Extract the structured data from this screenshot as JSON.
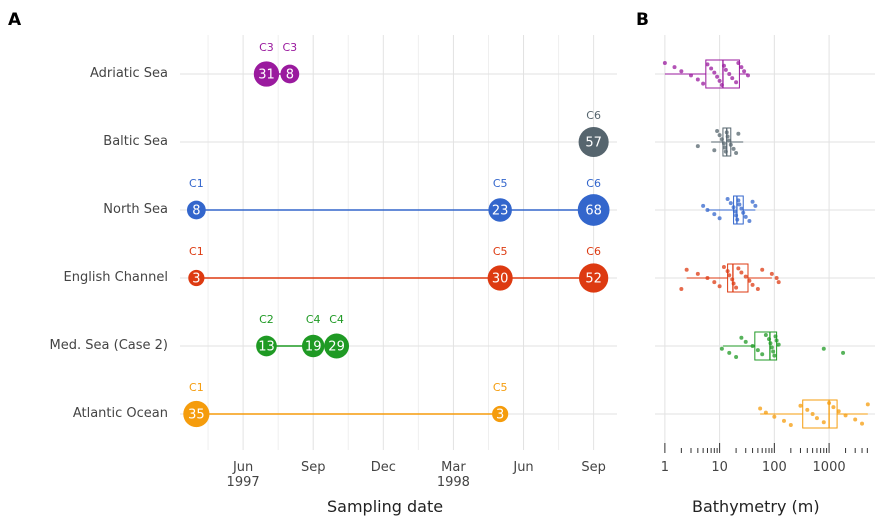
{
  "chart_data": [
    {
      "type": "bubble",
      "panel": "A",
      "x_label": "Sampling date",
      "xlim": [
        "1997-03",
        "1998-10"
      ],
      "xticks": [
        {
          "value": "1997-06",
          "label": "Jun\n1997"
        },
        {
          "value": "1997-09",
          "label": "Sep"
        },
        {
          "value": "1997-12",
          "label": "Dec"
        },
        {
          "value": "1998-03",
          "label": "Mar\n1998"
        },
        {
          "value": "1998-06",
          "label": "Jun"
        },
        {
          "value": "1998-09",
          "label": "Sep"
        }
      ],
      "grid": true,
      "series": [
        {
          "name": "Adriatic Sea",
          "color": "#9a1a9e",
          "x": [
            "1997-07",
            "1997-08"
          ],
          "values": [
            31,
            8
          ],
          "labels": [
            "C3",
            "C3"
          ]
        },
        {
          "name": "Baltic Sea",
          "color": "#56656e",
          "x": [
            "1998-09"
          ],
          "values": [
            57
          ],
          "labels": [
            "C6"
          ]
        },
        {
          "name": "North Sea",
          "color": "#3366cc",
          "x": [
            "1997-04",
            "1998-05",
            "1998-09"
          ],
          "values": [
            8,
            23,
            68
          ],
          "labels": [
            "C1",
            "C5",
            "C6"
          ]
        },
        {
          "name": "English Channel",
          "color": "#dd3a11",
          "x": [
            "1997-04",
            "1998-05",
            "1998-09"
          ],
          "values": [
            3,
            30,
            52
          ],
          "labels": [
            "C1",
            "C5",
            "C6"
          ]
        },
        {
          "name": "Med. Sea (Case 2)",
          "color": "#1f9a24",
          "x": [
            "1997-07",
            "1997-09",
            "1997-10"
          ],
          "values": [
            13,
            19,
            29
          ],
          "labels": [
            "C2",
            "C4",
            "C4"
          ]
        },
        {
          "name": "Atlantic Ocean",
          "color": "#f59c0c",
          "x": [
            "1997-04",
            "1998-05"
          ],
          "values": [
            35,
            3
          ],
          "labels": [
            "C1",
            "C5"
          ]
        }
      ]
    },
    {
      "type": "box",
      "panel": "B",
      "x_label": "Bathymetry (m)",
      "log_x": true,
      "xlim": [
        0.66,
        6900
      ],
      "xticks": [
        1,
        10,
        100,
        1000
      ],
      "xminorticks": [
        2,
        3,
        4,
        5,
        6,
        7,
        8,
        9,
        20,
        30,
        40,
        50,
        60,
        70,
        80,
        90,
        200,
        300,
        400,
        500,
        600,
        700,
        800,
        900,
        2000,
        3000,
        4000,
        5000
      ],
      "grid": true,
      "series": [
        {
          "color": "#9a1a9e",
          "whislo": 1,
          "q1": 5.6,
          "med": 11.5,
          "q3": 23,
          "whishi": 33,
          "points": [
            1,
            1.5,
            2,
            3,
            4,
            5,
            6,
            7,
            8,
            9,
            10,
            11,
            12,
            13,
            15,
            17,
            20,
            22,
            25,
            28,
            33
          ]
        },
        {
          "color": "#56656e",
          "whislo": 7,
          "q1": 11.5,
          "med": 13.5,
          "q3": 16,
          "whishi": 27,
          "points": [
            4,
            8,
            9,
            10,
            11,
            12,
            12.5,
            13,
            13.5,
            14,
            15,
            16,
            18,
            20,
            22
          ]
        },
        {
          "color": "#3366cc",
          "whislo": 6,
          "q1": 18,
          "med": 20.7,
          "q3": 27,
          "whishi": 45,
          "points": [
            5,
            6,
            8,
            10,
            14,
            16,
            18,
            19,
            20,
            21,
            22,
            23,
            25,
            27,
            30,
            35,
            40,
            45
          ]
        },
        {
          "color": "#dd3a11",
          "whislo": 2.5,
          "q1": 14,
          "med": 17.5,
          "q3": 33,
          "whishi": 90,
          "points": [
            2,
            2.5,
            4,
            6,
            8,
            10,
            12,
            14,
            15,
            17,
            18,
            20,
            22,
            25,
            30,
            35,
            40,
            50,
            60,
            90,
            110,
            120
          ]
        },
        {
          "color": "#1f9a24",
          "whislo": 11.5,
          "q1": 44,
          "med": 83,
          "q3": 110,
          "whishi": 120,
          "points": [
            11,
            15,
            20,
            25,
            30,
            40,
            50,
            60,
            70,
            80,
            85,
            90,
            95,
            100,
            105,
            110,
            120,
            800,
            1800
          ]
        },
        {
          "color": "#f59c0c",
          "whislo": 55,
          "q1": 330,
          "med": 1000,
          "q3": 1400,
          "whishi": 5100,
          "points": [
            55,
            70,
            100,
            150,
            200,
            300,
            400,
            500,
            600,
            800,
            1000,
            1200,
            1500,
            2000,
            3000,
            4000,
            5100
          ]
        }
      ]
    }
  ]
}
